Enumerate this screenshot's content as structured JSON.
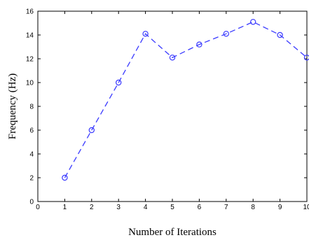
{
  "chart_data": {
    "type": "line",
    "title": "",
    "xlabel": "Number of Iterations",
    "ylabel": "Frequency (Hz)",
    "xlim": [
      0,
      10
    ],
    "ylim": [
      0,
      16
    ],
    "xticks": [
      "0",
      "1",
      "2",
      "3",
      "4",
      "5",
      "6",
      "7",
      "8",
      "9",
      "10"
    ],
    "yticks": [
      "0",
      "2",
      "4",
      "6",
      "8",
      "10",
      "12",
      "14",
      "16"
    ],
    "grid": false,
    "line_style": "dashed",
    "marker": "circle-open",
    "color": "#3a3aff",
    "series": [
      {
        "x": [
          1,
          2,
          3,
          4,
          5,
          6,
          7,
          8,
          9,
          10
        ],
        "values": [
          2.0,
          6.0,
          10.0,
          14.1,
          12.1,
          13.2,
          14.1,
          15.1,
          14.0,
          12.1
        ]
      }
    ]
  }
}
